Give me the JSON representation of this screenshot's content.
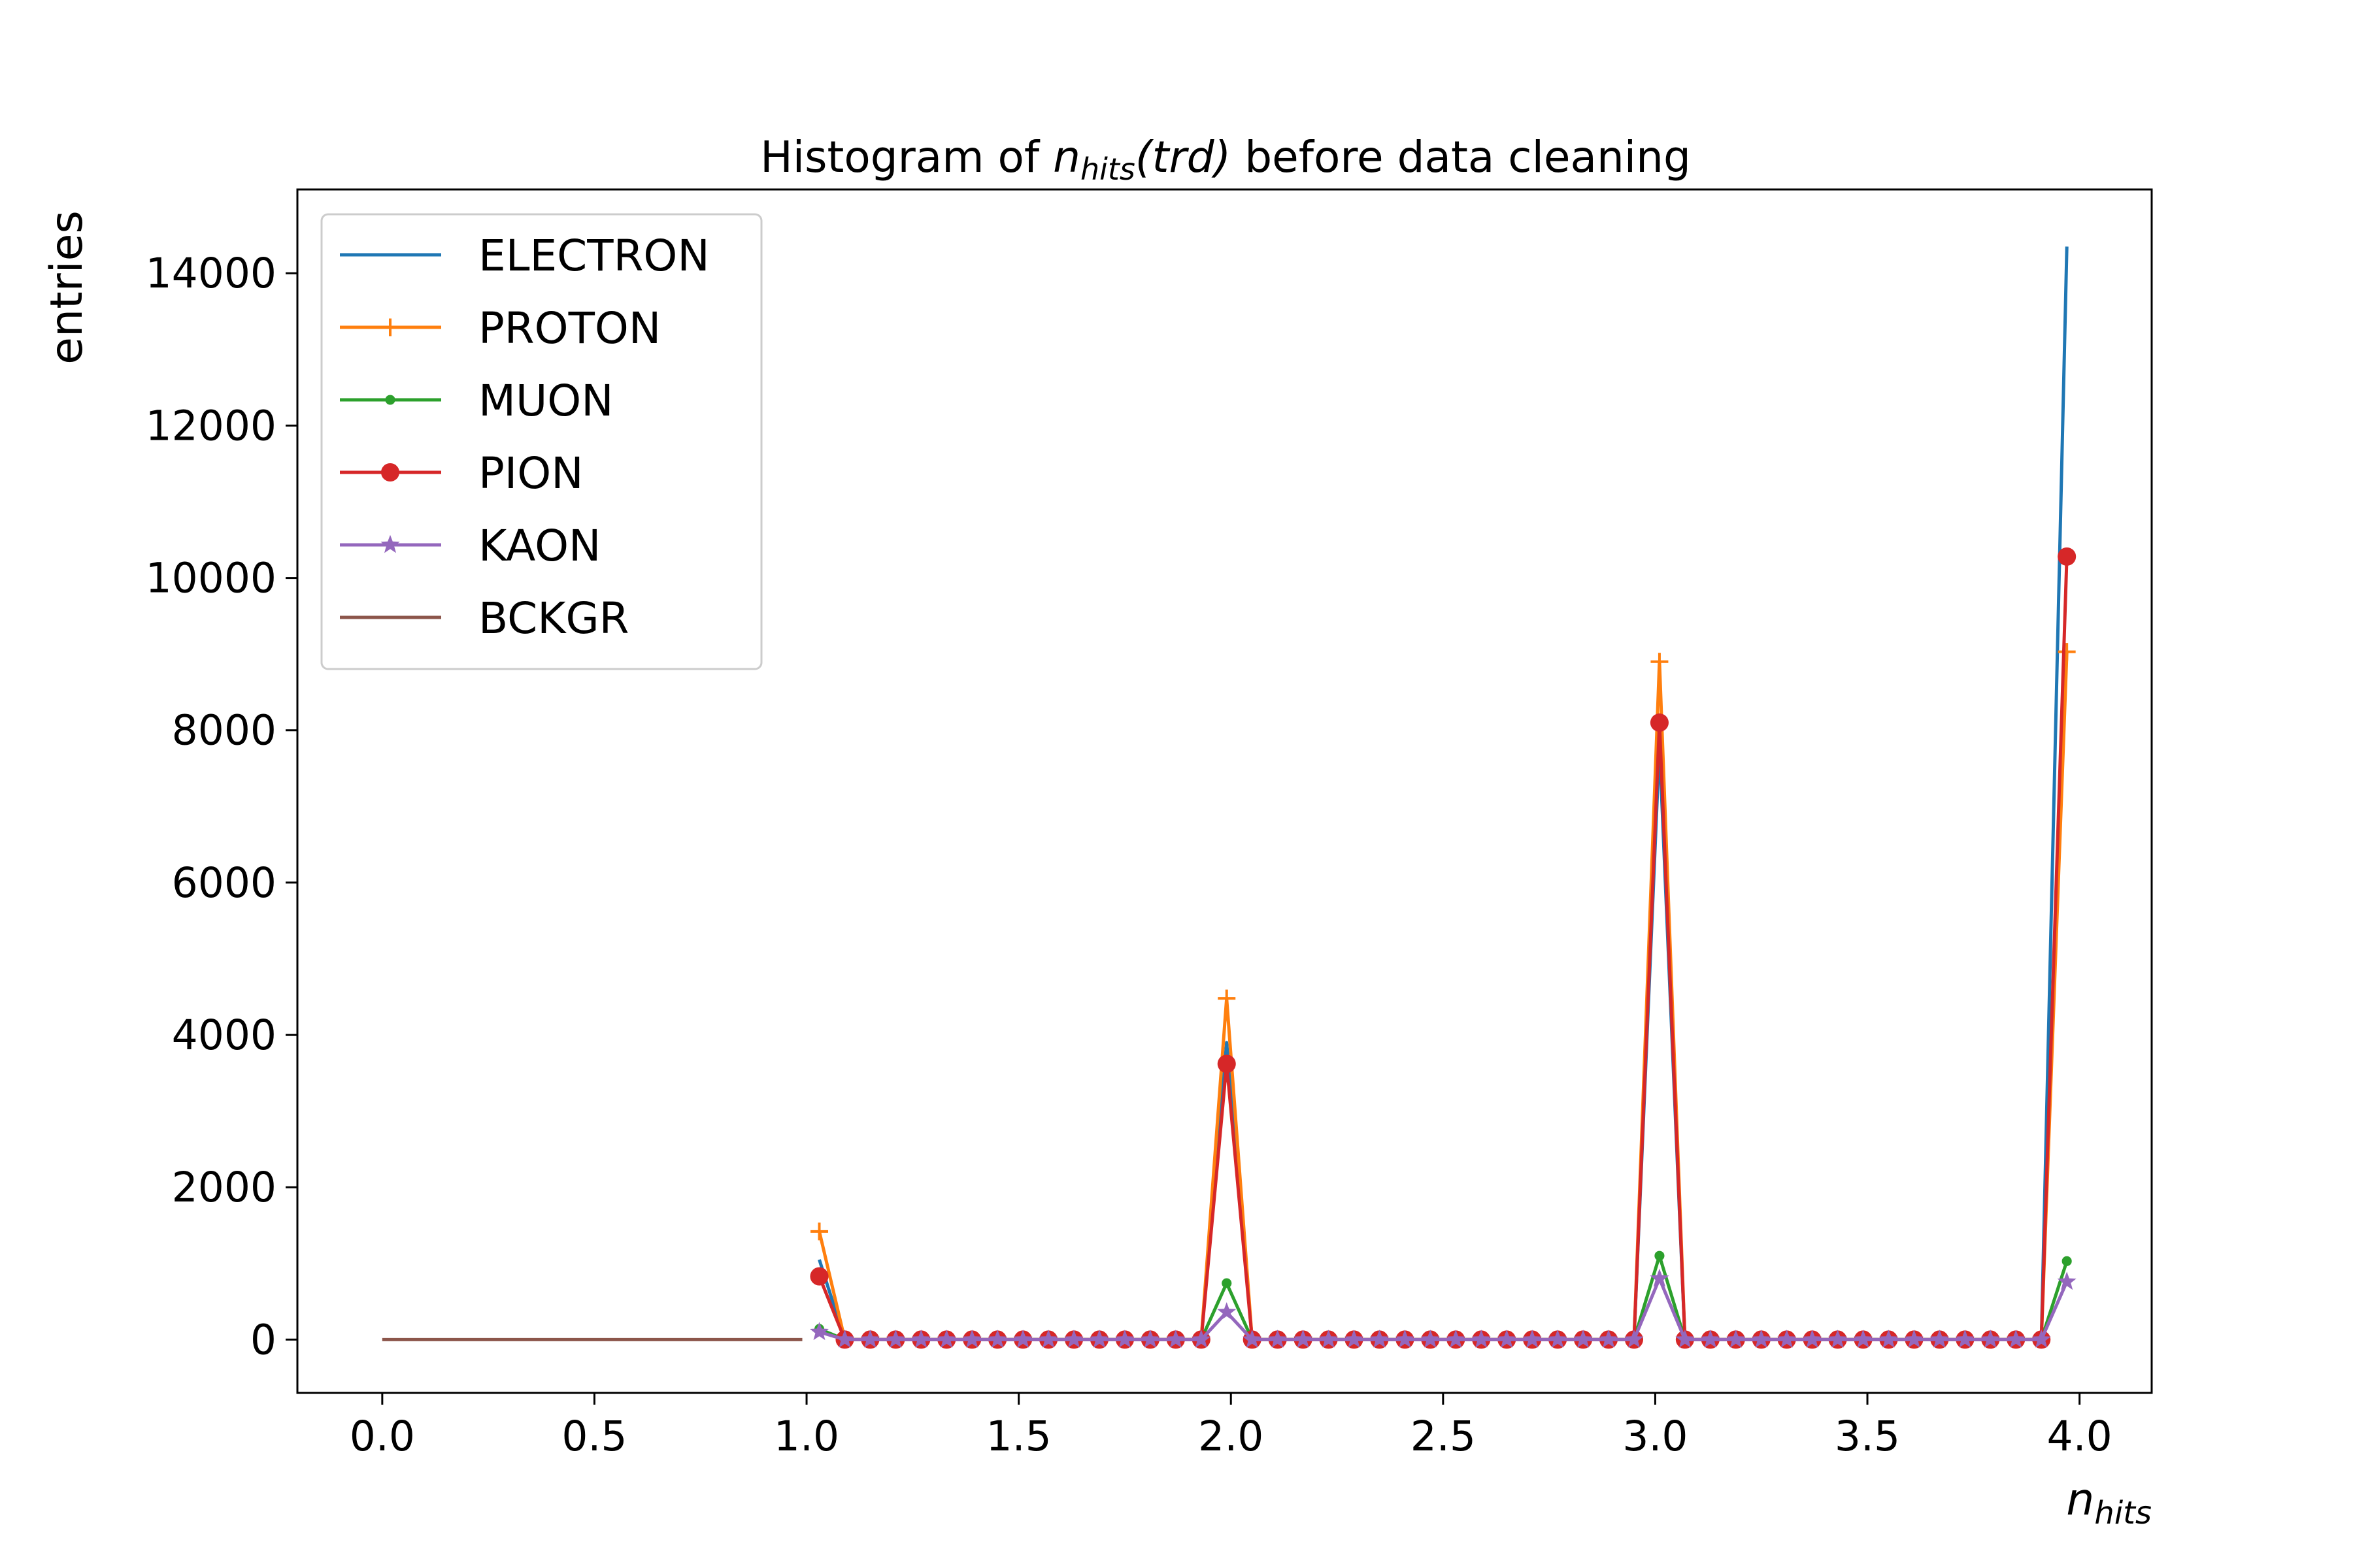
{
  "chart_data": {
    "type": "line",
    "title": {
      "prefix": "Histogram of ",
      "math_base": "n",
      "math_sub": "hits",
      "math_arg": "(trd)",
      "suffix": " before data cleaning"
    },
    "xlabel": {
      "base": "n",
      "sub": "hits"
    },
    "ylabel": "entries",
    "xlim": [
      -0.2,
      4.17
    ],
    "ylim": [
      -700,
      15100
    ],
    "x_ticks": [
      "0.0",
      "0.5",
      "1.0",
      "1.5",
      "2.0",
      "2.5",
      "3.0",
      "3.5",
      "4.0"
    ],
    "y_ticks": [
      "0",
      "2000",
      "4000",
      "6000",
      "8000",
      "10000",
      "12000",
      "14000"
    ],
    "grid": false,
    "legend_position": "upper-left",
    "series": [
      {
        "name": "ELECTRON",
        "color": "#1f77b4",
        "marker": "none",
        "x": [
          1.03,
          1.09,
          1.15,
          1.21,
          1.27,
          1.33,
          1.39,
          1.45,
          1.51,
          1.57,
          1.63,
          1.69,
          1.75,
          1.81,
          1.87,
          1.93,
          1.99,
          2.05,
          2.11,
          2.17,
          2.23,
          2.29,
          2.35,
          2.41,
          2.47,
          2.53,
          2.59,
          2.65,
          2.71,
          2.77,
          2.83,
          2.89,
          2.95,
          3.01,
          3.07,
          3.13,
          3.19,
          3.25,
          3.31,
          3.37,
          3.43,
          3.49,
          3.55,
          3.61,
          3.67,
          3.73,
          3.79,
          3.85,
          3.91,
          3.97
        ],
        "y": [
          1050,
          0,
          0,
          0,
          0,
          0,
          0,
          0,
          0,
          0,
          0,
          0,
          0,
          0,
          0,
          0,
          3900,
          0,
          0,
          0,
          0,
          0,
          0,
          0,
          0,
          0,
          0,
          0,
          0,
          0,
          0,
          0,
          0,
          7800,
          0,
          0,
          0,
          0,
          0,
          0,
          0,
          0,
          0,
          0,
          0,
          0,
          0,
          0,
          0,
          14350
        ]
      },
      {
        "name": "PROTON",
        "color": "#ff7f0e",
        "marker": "plus",
        "x": [
          1.03,
          1.09,
          1.15,
          1.21,
          1.27,
          1.33,
          1.39,
          1.45,
          1.51,
          1.57,
          1.63,
          1.69,
          1.75,
          1.81,
          1.87,
          1.93,
          1.99,
          2.05,
          2.11,
          2.17,
          2.23,
          2.29,
          2.35,
          2.41,
          2.47,
          2.53,
          2.59,
          2.65,
          2.71,
          2.77,
          2.83,
          2.89,
          2.95,
          3.01,
          3.07,
          3.13,
          3.19,
          3.25,
          3.31,
          3.37,
          3.43,
          3.49,
          3.55,
          3.61,
          3.67,
          3.73,
          3.79,
          3.85,
          3.91,
          3.97
        ],
        "y": [
          1420,
          0,
          0,
          0,
          0,
          0,
          0,
          0,
          0,
          0,
          0,
          0,
          0,
          0,
          0,
          0,
          4480,
          0,
          0,
          0,
          0,
          0,
          0,
          0,
          0,
          0,
          0,
          0,
          0,
          0,
          0,
          0,
          0,
          8900,
          0,
          0,
          0,
          0,
          0,
          0,
          0,
          0,
          0,
          0,
          0,
          0,
          0,
          0,
          0,
          9030
        ]
      },
      {
        "name": "MUON",
        "color": "#2ca02c",
        "marker": "point",
        "x": [
          1.03,
          1.09,
          1.15,
          1.21,
          1.27,
          1.33,
          1.39,
          1.45,
          1.51,
          1.57,
          1.63,
          1.69,
          1.75,
          1.81,
          1.87,
          1.93,
          1.99,
          2.05,
          2.11,
          2.17,
          2.23,
          2.29,
          2.35,
          2.41,
          2.47,
          2.53,
          2.59,
          2.65,
          2.71,
          2.77,
          2.83,
          2.89,
          2.95,
          3.01,
          3.07,
          3.13,
          3.19,
          3.25,
          3.31,
          3.37,
          3.43,
          3.49,
          3.55,
          3.61,
          3.67,
          3.73,
          3.79,
          3.85,
          3.91,
          3.97
        ],
        "y": [
          140,
          0,
          0,
          0,
          0,
          0,
          0,
          0,
          0,
          0,
          0,
          0,
          0,
          0,
          0,
          0,
          740,
          0,
          0,
          0,
          0,
          0,
          0,
          0,
          0,
          0,
          0,
          0,
          0,
          0,
          0,
          0,
          0,
          1100,
          0,
          0,
          0,
          0,
          0,
          0,
          0,
          0,
          0,
          0,
          0,
          0,
          0,
          0,
          0,
          1030
        ]
      },
      {
        "name": "PION",
        "color": "#d62728",
        "marker": "circle",
        "x": [
          1.03,
          1.09,
          1.15,
          1.21,
          1.27,
          1.33,
          1.39,
          1.45,
          1.51,
          1.57,
          1.63,
          1.69,
          1.75,
          1.81,
          1.87,
          1.93,
          1.99,
          2.05,
          2.11,
          2.17,
          2.23,
          2.29,
          2.35,
          2.41,
          2.47,
          2.53,
          2.59,
          2.65,
          2.71,
          2.77,
          2.83,
          2.89,
          2.95,
          3.01,
          3.07,
          3.13,
          3.19,
          3.25,
          3.31,
          3.37,
          3.43,
          3.49,
          3.55,
          3.61,
          3.67,
          3.73,
          3.79,
          3.85,
          3.91,
          3.97
        ],
        "y": [
          830,
          0,
          0,
          0,
          0,
          0,
          0,
          0,
          0,
          0,
          0,
          0,
          0,
          0,
          0,
          0,
          3620,
          0,
          0,
          0,
          0,
          0,
          0,
          0,
          0,
          0,
          0,
          0,
          0,
          0,
          0,
          0,
          0,
          8100,
          0,
          0,
          0,
          0,
          0,
          0,
          0,
          0,
          0,
          0,
          0,
          0,
          0,
          0,
          0,
          10280
        ]
      },
      {
        "name": "KAON",
        "color": "#9467bd",
        "marker": "star",
        "x": [
          1.03,
          1.09,
          1.15,
          1.21,
          1.27,
          1.33,
          1.39,
          1.45,
          1.51,
          1.57,
          1.63,
          1.69,
          1.75,
          1.81,
          1.87,
          1.93,
          1.99,
          2.05,
          2.11,
          2.17,
          2.23,
          2.29,
          2.35,
          2.41,
          2.47,
          2.53,
          2.59,
          2.65,
          2.71,
          2.77,
          2.83,
          2.89,
          2.95,
          3.01,
          3.07,
          3.13,
          3.19,
          3.25,
          3.31,
          3.37,
          3.43,
          3.49,
          3.55,
          3.61,
          3.67,
          3.73,
          3.79,
          3.85,
          3.91,
          3.97
        ],
        "y": [
          100,
          0,
          0,
          0,
          0,
          0,
          0,
          0,
          0,
          0,
          0,
          0,
          0,
          0,
          0,
          0,
          360,
          0,
          0,
          0,
          0,
          0,
          0,
          0,
          0,
          0,
          0,
          0,
          0,
          0,
          0,
          0,
          0,
          800,
          0,
          0,
          0,
          0,
          0,
          0,
          0,
          0,
          0,
          0,
          0,
          0,
          0,
          0,
          0,
          760
        ]
      },
      {
        "name": "BCKGR",
        "color": "#8c564b",
        "marker": "none",
        "x": [
          0.0,
          0.99
        ],
        "y": [
          0,
          0
        ]
      }
    ]
  }
}
